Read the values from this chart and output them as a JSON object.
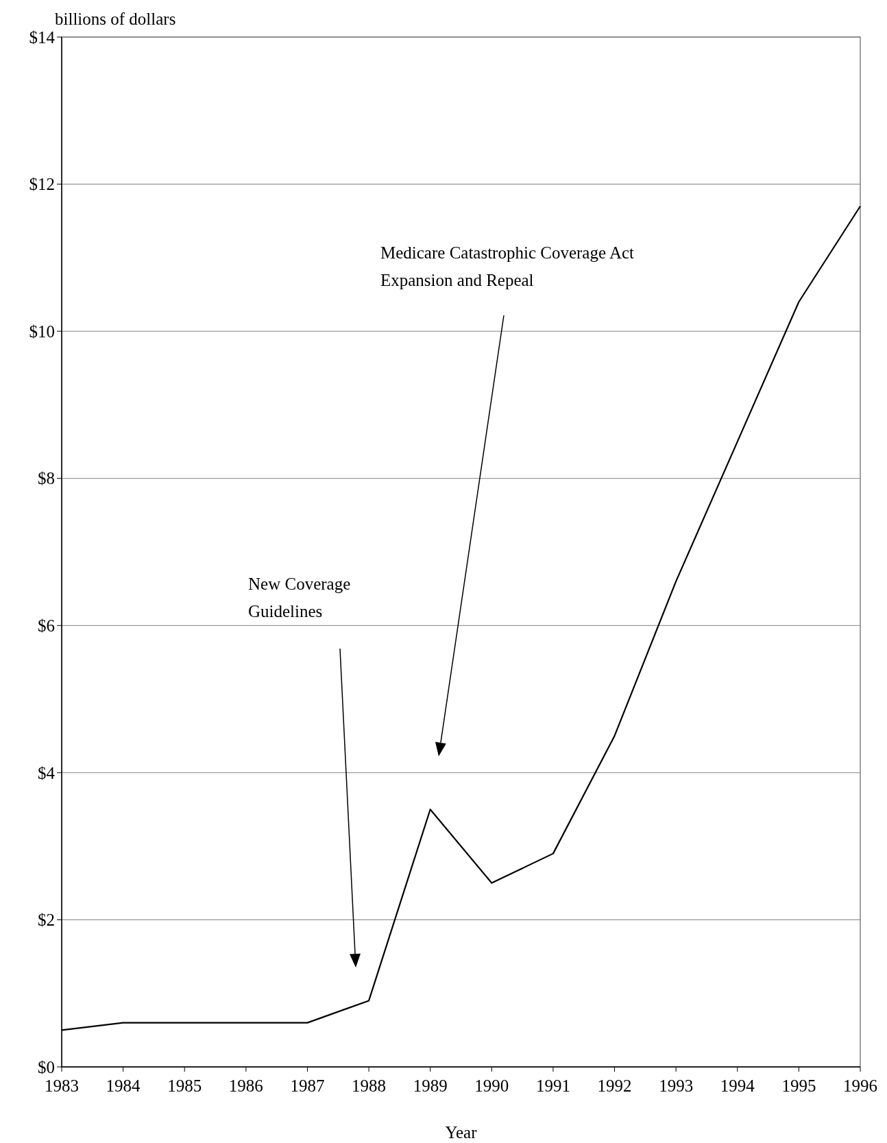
{
  "chart_data": {
    "type": "line",
    "ylabel": "billions of dollars",
    "xlabel": "Year",
    "x": [
      1983,
      1984,
      1985,
      1986,
      1987,
      1988,
      1989,
      1990,
      1991,
      1992,
      1993,
      1994,
      1995,
      1996
    ],
    "series": [
      {
        "color": "#000000",
        "values": [
          0.5,
          0.6,
          0.6,
          0.6,
          0.6,
          0.9,
          3.5,
          2.5,
          2.9,
          4.5,
          6.6,
          8.5,
          10.4,
          11.7
        ]
      }
    ],
    "xlim": [
      1983,
      1996
    ],
    "xticks": [
      1983,
      1984,
      1985,
      1986,
      1987,
      1988,
      1989,
      1990,
      1991,
      1992,
      1993,
      1994,
      1995,
      1996
    ],
    "ylim": [
      0,
      14
    ],
    "yticks": [
      {
        "value": 0,
        "label": "$0"
      },
      {
        "value": 2,
        "label": "$2"
      },
      {
        "value": 4,
        "label": "$4"
      },
      {
        "value": 6,
        "label": "$6"
      },
      {
        "value": 8,
        "label": "$8"
      },
      {
        "value": 10,
        "label": "$10"
      },
      {
        "value": 12,
        "label": "$12"
      },
      {
        "value": 14,
        "label": "$14"
      }
    ],
    "grid": "y",
    "marker": "none",
    "line_style": "solid",
    "annotations": [
      "New Coverage\nGuidelines",
      "Medicare Catastrophic Coverage Act\nExpansion and Repeal"
    ]
  }
}
